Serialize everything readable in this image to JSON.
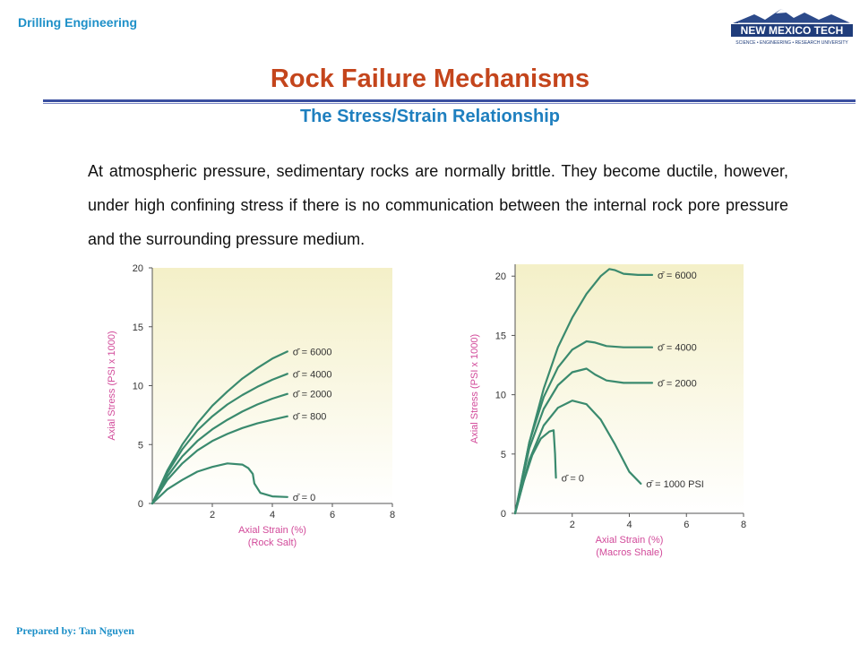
{
  "header": {
    "course": "Drilling Engineering",
    "logo_name": "NEW MEXICO TECH",
    "logo_tagline": "SCIENCE • ENGINEERING • RESEARCH UNIVERSITY"
  },
  "title": "Rock Failure Mechanisms",
  "subtitle": "The Stress/Strain Relationship",
  "paragraph": "At atmospheric pressure, sedimentary rocks are normally brittle. They become ductile, however, under high confining stress if there is no communication between the internal rock pore pressure and the surrounding pressure medium.",
  "footer": "Prepared by: Tan Nguyen",
  "colors": {
    "course": "#1e90c8",
    "title": "#c4451c",
    "subtitle": "#1e7fbf",
    "curve": "#3a8a6e",
    "axis_label": "#d24a9a",
    "label_text": "#333333",
    "plot_bg_top": "#f4f0c8",
    "plot_bg_bottom": "#ffffff"
  },
  "chart_data": [
    {
      "type": "line",
      "xlabel": "Axial Strain (%)",
      "xlabel_sub": "(Rock Salt)",
      "ylabel": "Axial Stress (PSI x 1000)",
      "xlim": [
        0,
        8
      ],
      "ylim": [
        0,
        20
      ],
      "xticks": [
        "2",
        "4",
        "6",
        "8"
      ],
      "yticks": [
        "0",
        "5",
        "10",
        "15",
        "20"
      ],
      "series": [
        {
          "name": "σ̄ = 6000",
          "x": [
            0,
            0.5,
            1,
            1.5,
            2,
            2.5,
            3,
            3.5,
            4,
            4.5
          ],
          "y": [
            0,
            2.8,
            5.0,
            6.8,
            8.3,
            9.5,
            10.6,
            11.5,
            12.3,
            12.9
          ]
        },
        {
          "name": "σ̄ = 4000",
          "x": [
            0,
            0.5,
            1,
            1.5,
            2,
            2.5,
            3,
            3.5,
            4,
            4.5
          ],
          "y": [
            0,
            2.6,
            4.6,
            6.2,
            7.4,
            8.4,
            9.2,
            9.9,
            10.5,
            11.0
          ]
        },
        {
          "name": "σ̄ = 2000",
          "x": [
            0,
            0.5,
            1,
            1.5,
            2,
            2.5,
            3,
            3.5,
            4,
            4.5
          ],
          "y": [
            0,
            2.3,
            4.0,
            5.3,
            6.3,
            7.1,
            7.8,
            8.4,
            8.9,
            9.3
          ]
        },
        {
          "name": "σ̄ = 800",
          "x": [
            0,
            0.5,
            1,
            1.5,
            2,
            2.5,
            3,
            3.5,
            4,
            4.5
          ],
          "y": [
            0,
            2.0,
            3.4,
            4.5,
            5.3,
            5.9,
            6.4,
            6.8,
            7.1,
            7.4
          ]
        },
        {
          "name": "σ̄ = 0",
          "x": [
            0,
            0.5,
            1,
            1.5,
            2,
            2.5,
            3,
            3.2,
            3.35,
            3.4,
            3.6,
            4,
            4.5
          ],
          "y": [
            0,
            1.2,
            2.0,
            2.7,
            3.1,
            3.4,
            3.3,
            3.0,
            2.5,
            1.7,
            0.9,
            0.6,
            0.55
          ]
        }
      ]
    },
    {
      "type": "line",
      "xlabel": "Axial Strain (%)",
      "xlabel_sub": "(Macros Shale)",
      "ylabel": "Axial Stress (PSI x 1000)",
      "xlim": [
        0,
        8
      ],
      "ylim": [
        0,
        21
      ],
      "xticks": [
        "2",
        "4",
        "6",
        "8"
      ],
      "yticks": [
        "0",
        "5",
        "10",
        "15",
        "20"
      ],
      "series": [
        {
          "name": "σ̄ = 6000",
          "x": [
            0,
            0.5,
            1,
            1.5,
            2,
            2.5,
            3,
            3.3,
            3.5,
            3.8,
            4.3,
            4.8
          ],
          "y": [
            0,
            6.0,
            10.5,
            14.0,
            16.5,
            18.5,
            20.0,
            20.6,
            20.5,
            20.2,
            20.1,
            20.1
          ]
        },
        {
          "name": "σ̄ = 4000",
          "x": [
            0,
            0.5,
            1,
            1.5,
            2,
            2.5,
            2.8,
            3.2,
            3.8,
            4.8
          ],
          "y": [
            0,
            6.0,
            9.8,
            12.3,
            13.8,
            14.5,
            14.4,
            14.1,
            14.0,
            14.0
          ]
        },
        {
          "name": "σ̄ = 2000",
          "x": [
            0,
            0.5,
            1,
            1.5,
            2,
            2.5,
            2.8,
            3.2,
            3.8,
            4.8
          ],
          "y": [
            0,
            5.5,
            8.8,
            10.8,
            11.9,
            12.2,
            11.7,
            11.2,
            11.0,
            11.0
          ]
        },
        {
          "name": "σ̄ = 1000 PSI",
          "x": [
            0,
            0.5,
            1,
            1.5,
            2,
            2.5,
            3,
            3.5,
            4,
            4.4
          ],
          "y": [
            0,
            4.5,
            7.4,
            8.9,
            9.5,
            9.2,
            7.9,
            5.8,
            3.5,
            2.5
          ]
        },
        {
          "name": "σ̄ = 0",
          "x": [
            0,
            0.3,
            0.6,
            0.9,
            1.2,
            1.35,
            1.4,
            1.42,
            1.43
          ],
          "y": [
            0,
            2.7,
            4.9,
            6.3,
            6.9,
            7.0,
            5.0,
            3.5,
            3.0
          ]
        }
      ]
    }
  ]
}
